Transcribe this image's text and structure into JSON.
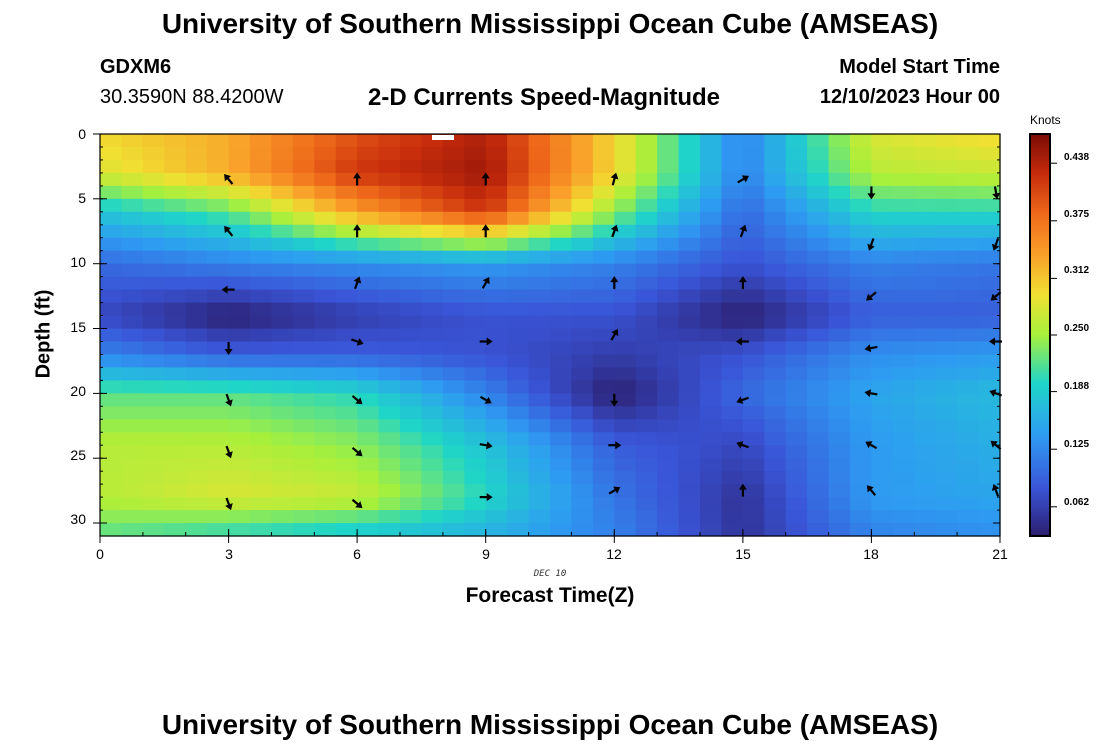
{
  "header": {
    "title": "University of Southern Mississippi Ocean Cube (AMSEAS)",
    "station": "GDXM6",
    "coords": "30.3590N  88.4200W",
    "model_start_label": "Model Start Time",
    "model_start_value": "12/10/2023 Hour 00",
    "footer_title": "University of Southern Mississippi Ocean Cube (AMSEAS)"
  },
  "colorbar": {
    "unit": "Knots",
    "ticks": [
      "0.438",
      "0.375",
      "0.312",
      "0.250",
      "0.188",
      "0.125",
      "0.062"
    ],
    "tick_values": [
      0.438,
      0.375,
      0.312,
      0.25,
      0.188,
      0.125,
      0.062
    ],
    "range": [
      0.03,
      0.47
    ]
  },
  "chart_data": {
    "type": "heatmap",
    "title": "2-D Currents Speed-Magnitude",
    "xlabel": "Forecast Time(Z)",
    "ylabel": "Depth (ft)",
    "date_label": "DEC 10",
    "xlim": [
      0,
      21
    ],
    "ylim": [
      0,
      31
    ],
    "x_ticks": [
      0,
      3,
      6,
      9,
      12,
      15,
      18,
      21
    ],
    "y_ticks": [
      0,
      5,
      10,
      15,
      20,
      25,
      30
    ],
    "x_tick_labels": [
      "0",
      "3",
      "6",
      "9",
      "12",
      "15",
      "18",
      "21"
    ],
    "y_tick_labels": [
      "0",
      "5",
      "10",
      "15",
      "20",
      "25",
      "30"
    ],
    "depth_rows": [
      0,
      3,
      6,
      10,
      14,
      17,
      20,
      24,
      28,
      31
    ],
    "hour_cols": [
      0,
      3,
      6,
      9,
      12,
      15,
      18,
      21
    ],
    "speed_knots": [
      [
        0.3,
        0.33,
        0.4,
        0.44,
        0.3,
        0.12,
        0.28,
        0.3
      ],
      [
        0.28,
        0.33,
        0.42,
        0.45,
        0.3,
        0.12,
        0.26,
        0.27
      ],
      [
        0.18,
        0.22,
        0.34,
        0.42,
        0.24,
        0.1,
        0.2,
        0.2
      ],
      [
        0.1,
        0.12,
        0.13,
        0.14,
        0.12,
        0.08,
        0.12,
        0.11
      ],
      [
        0.07,
        0.03,
        0.06,
        0.08,
        0.08,
        0.03,
        0.09,
        0.09
      ],
      [
        0.12,
        0.09,
        0.09,
        0.08,
        0.06,
        0.08,
        0.13,
        0.14
      ],
      [
        0.22,
        0.22,
        0.2,
        0.12,
        0.03,
        0.1,
        0.15,
        0.17
      ],
      [
        0.26,
        0.26,
        0.24,
        0.18,
        0.09,
        0.07,
        0.14,
        0.16
      ],
      [
        0.26,
        0.28,
        0.27,
        0.2,
        0.11,
        0.05,
        0.14,
        0.15
      ],
      [
        0.22,
        0.2,
        0.18,
        0.16,
        0.12,
        0.05,
        0.12,
        0.13
      ]
    ],
    "vectors": [
      {
        "t": 3,
        "d": 3.5,
        "dir": 320
      },
      {
        "t": 6,
        "d": 3.5,
        "dir": 0
      },
      {
        "t": 9,
        "d": 3.5,
        "dir": 0
      },
      {
        "t": 12,
        "d": 3.5,
        "dir": 15
      },
      {
        "t": 15,
        "d": 3.5,
        "dir": 60
      },
      {
        "t": 18,
        "d": 4.5,
        "dir": 180
      },
      {
        "t": 21,
        "d": 4.5,
        "dir": 170
      },
      {
        "t": 3,
        "d": 7.5,
        "dir": 320
      },
      {
        "t": 6,
        "d": 7.5,
        "dir": 0
      },
      {
        "t": 9,
        "d": 7.5,
        "dir": 0
      },
      {
        "t": 12,
        "d": 7.5,
        "dir": 20
      },
      {
        "t": 15,
        "d": 7.5,
        "dir": 20
      },
      {
        "t": 18,
        "d": 8.5,
        "dir": 200
      },
      {
        "t": 21,
        "d": 8.5,
        "dir": 200
      },
      {
        "t": 3,
        "d": 12,
        "dir": 270
      },
      {
        "t": 6,
        "d": 11.5,
        "dir": 20
      },
      {
        "t": 9,
        "d": 11.5,
        "dir": 30
      },
      {
        "t": 12,
        "d": 11.5,
        "dir": 0
      },
      {
        "t": 15,
        "d": 11.5,
        "dir": 0
      },
      {
        "t": 18,
        "d": 12.5,
        "dir": 230
      },
      {
        "t": 21,
        "d": 12.5,
        "dir": 230
      },
      {
        "t": 3,
        "d": 16.5,
        "dir": 180
      },
      {
        "t": 6,
        "d": 16,
        "dir": 110
      },
      {
        "t": 9,
        "d": 16,
        "dir": 90
      },
      {
        "t": 12,
        "d": 15.5,
        "dir": 30
      },
      {
        "t": 15,
        "d": 16,
        "dir": 270
      },
      {
        "t": 18,
        "d": 16.5,
        "dir": 260
      },
      {
        "t": 21,
        "d": 16,
        "dir": 270
      },
      {
        "t": 3,
        "d": 20.5,
        "dir": 160
      },
      {
        "t": 6,
        "d": 20.5,
        "dir": 130
      },
      {
        "t": 9,
        "d": 20.5,
        "dir": 120
      },
      {
        "t": 12,
        "d": 20.5,
        "dir": 180
      },
      {
        "t": 15,
        "d": 20.5,
        "dir": 250
      },
      {
        "t": 18,
        "d": 20,
        "dir": 280
      },
      {
        "t": 21,
        "d": 20,
        "dir": 290
      },
      {
        "t": 3,
        "d": 24.5,
        "dir": 160
      },
      {
        "t": 6,
        "d": 24.5,
        "dir": 130
      },
      {
        "t": 9,
        "d": 24,
        "dir": 100
      },
      {
        "t": 12,
        "d": 24,
        "dir": 90
      },
      {
        "t": 15,
        "d": 24,
        "dir": 290
      },
      {
        "t": 18,
        "d": 24,
        "dir": 300
      },
      {
        "t": 21,
        "d": 24,
        "dir": 310
      },
      {
        "t": 3,
        "d": 28.5,
        "dir": 160
      },
      {
        "t": 6,
        "d": 28.5,
        "dir": 130
      },
      {
        "t": 9,
        "d": 28,
        "dir": 90
      },
      {
        "t": 12,
        "d": 27.5,
        "dir": 60
      },
      {
        "t": 15,
        "d": 27.5,
        "dir": 0
      },
      {
        "t": 18,
        "d": 27.5,
        "dir": 320
      },
      {
        "t": 21,
        "d": 27.5,
        "dir": 340
      }
    ]
  }
}
